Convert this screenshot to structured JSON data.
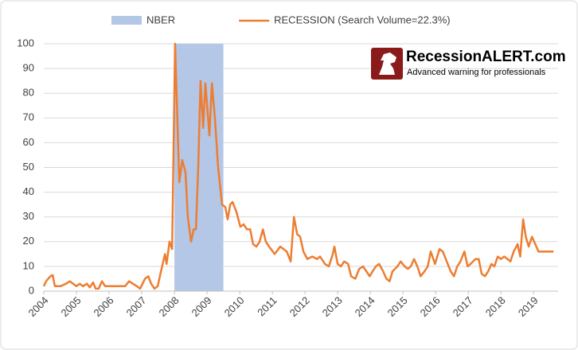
{
  "chart_data": {
    "type": "line",
    "x": [
      2004.0,
      2004.07,
      2004.2,
      2004.27,
      2004.34,
      2004.51,
      2004.68,
      2004.8,
      2004.9,
      2005.0,
      2005.1,
      2005.2,
      2005.32,
      2005.41,
      2005.51,
      2005.59,
      2005.68,
      2005.78,
      2005.88,
      2006.07,
      2006.32,
      2006.49,
      2006.61,
      2006.73,
      2006.85,
      2006.95,
      2007.1,
      2007.2,
      2007.29,
      2007.39,
      2007.49,
      2007.59,
      2007.71,
      2007.76,
      2007.85,
      2007.93,
      2008.02,
      2008.15,
      2008.24,
      2008.34,
      2008.41,
      2008.49,
      2008.51,
      2008.59,
      2008.66,
      2008.73,
      2008.8,
      2008.88,
      2008.95,
      2009.07,
      2009.15,
      2009.24,
      2009.34,
      2009.46,
      2009.56,
      2009.63,
      2009.71,
      2009.78,
      2009.9,
      2010.02,
      2010.12,
      2010.22,
      2010.32,
      2010.41,
      2010.51,
      2010.61,
      2010.71,
      2010.8,
      2010.9,
      2011.07,
      2011.24,
      2011.44,
      2011.56,
      2011.66,
      2011.76,
      2011.85,
      2011.95,
      2012.07,
      2012.22,
      2012.37,
      2012.46,
      2012.61,
      2012.73,
      2012.85,
      2012.9,
      2013.0,
      2013.1,
      2013.2,
      2013.32,
      2013.41,
      2013.54,
      2013.66,
      2013.78,
      2013.88,
      2013.98,
      2014.07,
      2014.17,
      2014.27,
      2014.39,
      2014.49,
      2014.59,
      2014.68,
      2014.83,
      2014.93,
      2015.05,
      2015.15,
      2015.24,
      2015.34,
      2015.44,
      2015.54,
      2015.66,
      2015.76,
      2015.85,
      2015.98,
      2016.12,
      2016.22,
      2016.34,
      2016.46,
      2016.56,
      2016.66,
      2016.76,
      2016.88,
      2016.98,
      2017.07,
      2017.22,
      2017.32,
      2017.41,
      2017.51,
      2017.61,
      2017.71,
      2017.8,
      2017.9,
      2018.0,
      2018.1,
      2018.2,
      2018.29,
      2018.39,
      2018.51,
      2018.59,
      2018.68,
      2018.76,
      2018.85,
      2018.95,
      2019.05,
      2019.15,
      2019.61
    ],
    "series": [
      {
        "name": "RECESSION (Search Volume=22.3%)",
        "color": "#ed7d31",
        "values": [
          2,
          4,
          6,
          6.5,
          2,
          2,
          3,
          4,
          3,
          2,
          3,
          2,
          3,
          1.5,
          3.5,
          1,
          1,
          4,
          2,
          2,
          2,
          2,
          4,
          3,
          2,
          1,
          5,
          6,
          3,
          1,
          2,
          8,
          15,
          11,
          20,
          17,
          100,
          44,
          53,
          48,
          30,
          22,
          20,
          25,
          25,
          50,
          85,
          66,
          84,
          63,
          84,
          70,
          50,
          35,
          34,
          29,
          35,
          36,
          32,
          26,
          27,
          25,
          25,
          19,
          18,
          20,
          25,
          20,
          18,
          15,
          18,
          16,
          12,
          30,
          23,
          22,
          16,
          13,
          14,
          13,
          14,
          11,
          10,
          15,
          18,
          11,
          10,
          12,
          11,
          6,
          5,
          9,
          10,
          8,
          6,
          8,
          10,
          11,
          8,
          5,
          4,
          8,
          10,
          12,
          10,
          9,
          10,
          13,
          10,
          6,
          8,
          10,
          16,
          11,
          17,
          16,
          12,
          8,
          6,
          10,
          12,
          16,
          10,
          11,
          13,
          13,
          7,
          6,
          8,
          11,
          10,
          14,
          13,
          14,
          13,
          12,
          16,
          19,
          14,
          29,
          22,
          18,
          22,
          19,
          16,
          16
        ]
      }
    ],
    "shaded": [
      {
        "name": "NBER",
        "color": "#b4c7e7",
        "x0": 2008.0,
        "x1": 2009.5
      }
    ],
    "xlim": [
      2004,
      2019.75
    ],
    "xticks": [
      2004,
      2005,
      2006,
      2007,
      2008,
      2009,
      2010,
      2011,
      2012,
      2013,
      2014,
      2015,
      2016,
      2017,
      2018,
      2019
    ],
    "ylim": [
      0,
      100
    ],
    "yticks": [
      0,
      10,
      20,
      30,
      40,
      50,
      60,
      70,
      80,
      90,
      100
    ],
    "grid": true,
    "annotations": [
      "RecessionALERT.com",
      "Advanced warning for professionals"
    ]
  }
}
